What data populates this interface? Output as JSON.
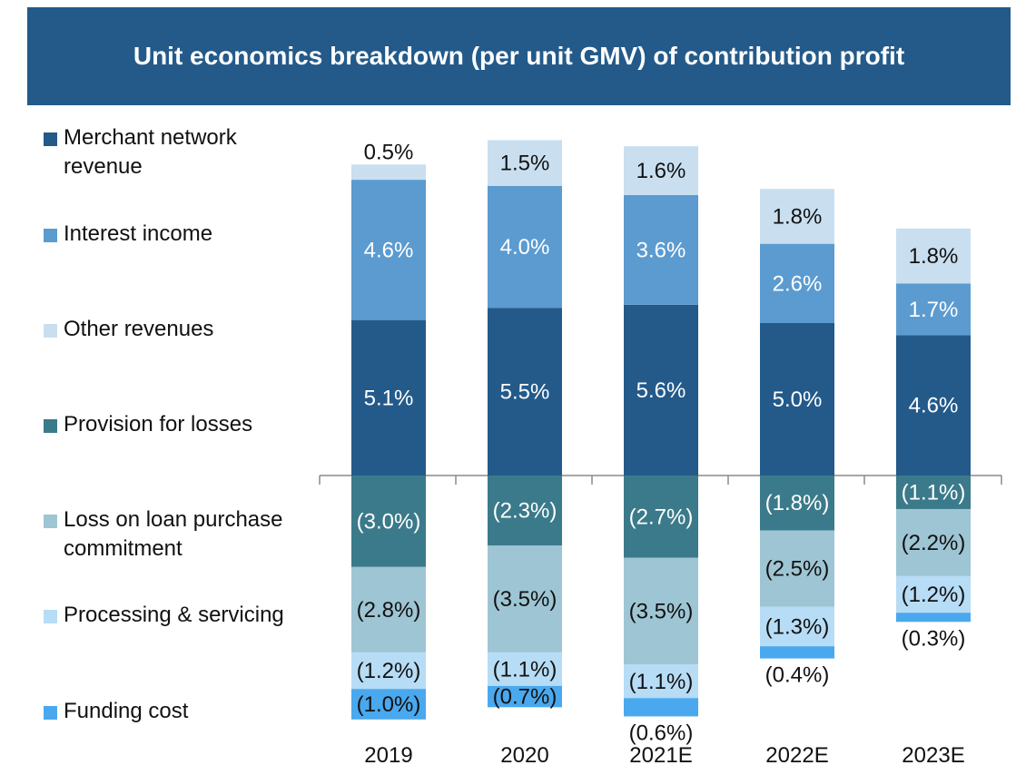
{
  "title": "Unit economics breakdown (per unit GMV) of contribution profit",
  "chart_data": {
    "type": "bar",
    "stacked": true,
    "categories": [
      "2019",
      "2020",
      "2021E",
      "2022E",
      "2023E"
    ],
    "series": [
      {
        "name": "Merchant network revenue",
        "color": "#235a8a",
        "label_color": "#ffffff",
        "values": [
          5.1,
          5.5,
          5.6,
          5.0,
          4.6
        ],
        "labels": [
          "5.1%",
          "5.5%",
          "5.6%",
          "5.0%",
          "4.6%"
        ]
      },
      {
        "name": "Interest income",
        "color": "#5b9bd0",
        "label_color": "#ffffff",
        "values": [
          4.6,
          4.0,
          3.6,
          2.6,
          1.7
        ],
        "labels": [
          "4.6%",
          "4.0%",
          "3.6%",
          "2.6%",
          "1.7%"
        ]
      },
      {
        "name": "Other revenues",
        "color": "#c9dff0",
        "label_color": "#111111",
        "values": [
          0.5,
          1.5,
          1.6,
          1.8,
          1.8
        ],
        "labels": [
          "0.5%",
          "1.5%",
          "1.6%",
          "1.8%",
          "1.8%"
        ]
      },
      {
        "name": "Provision for losses",
        "color": "#3b7a8a",
        "label_color": "#ffffff",
        "values": [
          -3.0,
          -2.3,
          -2.7,
          -1.8,
          -1.1
        ],
        "labels": [
          "(3.0%)",
          "(2.3%)",
          "(2.7%)",
          "(1.8%)",
          "(1.1%)"
        ]
      },
      {
        "name": "Loss on loan purchase commitment",
        "color": "#9ec5d4",
        "label_color": "#111111",
        "values": [
          -2.8,
          -3.5,
          -3.5,
          -2.5,
          -2.2
        ],
        "labels": [
          "(2.8%)",
          "(3.5%)",
          "(3.5%)",
          "(2.5%)",
          "(2.2%)"
        ]
      },
      {
        "name": "Processing & servicing",
        "color": "#b7dcf5",
        "label_color": "#111111",
        "values": [
          -1.2,
          -1.1,
          -1.1,
          -1.3,
          -1.2
        ],
        "labels": [
          "(1.2%)",
          "(1.1%)",
          "(1.1%)",
          "(1.3%)",
          "(1.2%)"
        ]
      },
      {
        "name": "Funding cost",
        "color": "#4aa8ee",
        "label_color": "#111111",
        "values": [
          -1.0,
          -0.7,
          -0.6,
          -0.4,
          -0.3
        ],
        "labels": [
          "(1.0%)",
          "(0.7%)",
          "(0.6%)",
          "(0.4%)",
          "(0.3%)"
        ]
      }
    ],
    "legend_position": "left",
    "grid": false,
    "axis": "horizontal zero line"
  }
}
